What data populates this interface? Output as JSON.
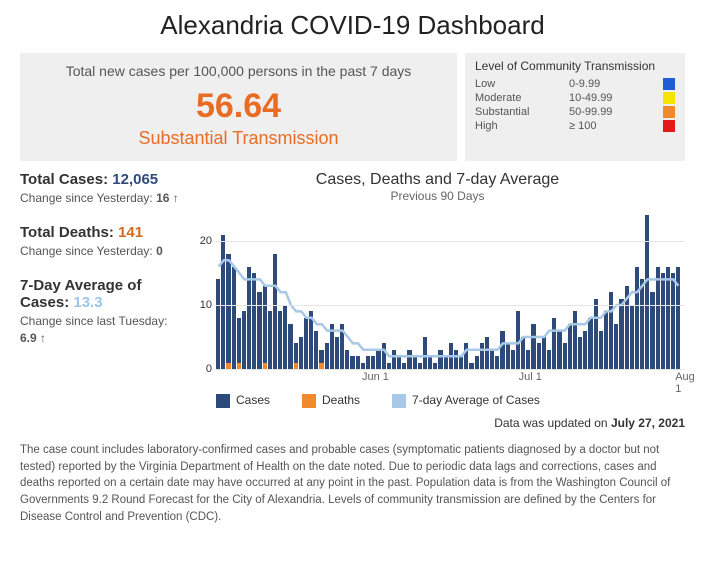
{
  "title": "Alexandria COVID-19 Dashboard",
  "kpi": {
    "label": "Total new cases per 100,000 persons in the past 7 days",
    "value": "56.64",
    "status": "Substantial Transmission",
    "value_color": "#e86c24",
    "status_color": "#e86c24"
  },
  "transmission_legend": {
    "title": "Level of Community Transmission",
    "levels": [
      {
        "name": "Low",
        "range": "0-9.99",
        "color": "#1f5cd6"
      },
      {
        "name": "Moderate",
        "range": "10-49.99",
        "color": "#f5e400"
      },
      {
        "name": "Substantial",
        "range": "50-99.99",
        "color": "#f08a2c"
      },
      {
        "name": "High",
        "range": "≥ 100",
        "color": "#e21a1a"
      }
    ]
  },
  "stats": {
    "cases": {
      "label": "Total Cases:",
      "value": "12,065",
      "value_color": "#2d4a7a",
      "change_label": "Change since Yesterday:",
      "change_value": "16 ↑"
    },
    "deaths": {
      "label": "Total Deaths:",
      "value": "141",
      "value_color": "#d46a1e",
      "change_label": "Change since Yesterday:",
      "change_value": "0"
    },
    "avg": {
      "label": "7-Day Average of Cases:",
      "value": "13.3",
      "value_color": "#9ec4e8",
      "change_label": "Change since last Tuesday:",
      "change_value": "6.9  ↑"
    }
  },
  "chart": {
    "title": "Cases, Deaths and 7-day Average",
    "subtitle": "Previous 90 Days",
    "background_color": "#ffffff",
    "grid_color": "#e5e5e5",
    "y_max": 25,
    "y_ticks": [
      0,
      10,
      20
    ],
    "x_labels": [
      {
        "text": "Jun 1",
        "pos_pct": 34
      },
      {
        "text": "Jul 1",
        "pos_pct": 67
      },
      {
        "text": "Aug 1",
        "pos_pct": 100
      }
    ],
    "cases_color": "#2d4a7a",
    "deaths_color": "#f08a2c",
    "avg_color": "#a8c8e8",
    "bars": [
      {
        "c": 14,
        "d": 0
      },
      {
        "c": 21,
        "d": 0
      },
      {
        "c": 18,
        "d": 1
      },
      {
        "c": 16,
        "d": 0
      },
      {
        "c": 8,
        "d": 1
      },
      {
        "c": 9,
        "d": 0
      },
      {
        "c": 16,
        "d": 0
      },
      {
        "c": 15,
        "d": 0
      },
      {
        "c": 12,
        "d": 0
      },
      {
        "c": 13,
        "d": 1
      },
      {
        "c": 9,
        "d": 0
      },
      {
        "c": 18,
        "d": 0
      },
      {
        "c": 9,
        "d": 0
      },
      {
        "c": 10,
        "d": 0
      },
      {
        "c": 7,
        "d": 0
      },
      {
        "c": 4,
        "d": 1
      },
      {
        "c": 5,
        "d": 0
      },
      {
        "c": 8,
        "d": 0
      },
      {
        "c": 9,
        "d": 0
      },
      {
        "c": 6,
        "d": 0
      },
      {
        "c": 3,
        "d": 1
      },
      {
        "c": 4,
        "d": 0
      },
      {
        "c": 7,
        "d": 0
      },
      {
        "c": 5,
        "d": 0
      },
      {
        "c": 7,
        "d": 0
      },
      {
        "c": 3,
        "d": 0
      },
      {
        "c": 2,
        "d": 0
      },
      {
        "c": 2,
        "d": 0
      },
      {
        "c": 1,
        "d": 0
      },
      {
        "c": 2,
        "d": 0
      },
      {
        "c": 2,
        "d": 0
      },
      {
        "c": 3,
        "d": 0
      },
      {
        "c": 4,
        "d": 0
      },
      {
        "c": 1,
        "d": 0
      },
      {
        "c": 3,
        "d": 0
      },
      {
        "c": 2,
        "d": 0
      },
      {
        "c": 1,
        "d": 0
      },
      {
        "c": 3,
        "d": 0
      },
      {
        "c": 2,
        "d": 0
      },
      {
        "c": 1,
        "d": 0
      },
      {
        "c": 5,
        "d": 0
      },
      {
        "c": 2,
        "d": 0
      },
      {
        "c": 1,
        "d": 0
      },
      {
        "c": 3,
        "d": 0
      },
      {
        "c": 2,
        "d": 0
      },
      {
        "c": 4,
        "d": 0
      },
      {
        "c": 3,
        "d": 0
      },
      {
        "c": 2,
        "d": 0
      },
      {
        "c": 4,
        "d": 0
      },
      {
        "c": 1,
        "d": 0
      },
      {
        "c": 2,
        "d": 0
      },
      {
        "c": 4,
        "d": 0
      },
      {
        "c": 5,
        "d": 0
      },
      {
        "c": 3,
        "d": 0
      },
      {
        "c": 2,
        "d": 0
      },
      {
        "c": 6,
        "d": 0
      },
      {
        "c": 4,
        "d": 0
      },
      {
        "c": 3,
        "d": 0
      },
      {
        "c": 9,
        "d": 0
      },
      {
        "c": 5,
        "d": 0
      },
      {
        "c": 3,
        "d": 0
      },
      {
        "c": 7,
        "d": 0
      },
      {
        "c": 4,
        "d": 0
      },
      {
        "c": 5,
        "d": 0
      },
      {
        "c": 3,
        "d": 0
      },
      {
        "c": 8,
        "d": 0
      },
      {
        "c": 6,
        "d": 0
      },
      {
        "c": 4,
        "d": 0
      },
      {
        "c": 7,
        "d": 0
      },
      {
        "c": 9,
        "d": 0
      },
      {
        "c": 5,
        "d": 0
      },
      {
        "c": 6,
        "d": 0
      },
      {
        "c": 8,
        "d": 0
      },
      {
        "c": 11,
        "d": 0
      },
      {
        "c": 6,
        "d": 0
      },
      {
        "c": 9,
        "d": 0
      },
      {
        "c": 12,
        "d": 0
      },
      {
        "c": 7,
        "d": 0
      },
      {
        "c": 11,
        "d": 0
      },
      {
        "c": 13,
        "d": 0
      },
      {
        "c": 10,
        "d": 0
      },
      {
        "c": 16,
        "d": 0
      },
      {
        "c": 14,
        "d": 0
      },
      {
        "c": 24,
        "d": 0
      },
      {
        "c": 12,
        "d": 0
      },
      {
        "c": 16,
        "d": 0
      },
      {
        "c": 15,
        "d": 0
      },
      {
        "c": 16,
        "d": 0
      },
      {
        "c": 15,
        "d": 0
      },
      {
        "c": 16,
        "d": 0
      }
    ],
    "avg_series": [
      16,
      17,
      17,
      16,
      15,
      14,
      14,
      14,
      14,
      13,
      13,
      13,
      12,
      12,
      10,
      9,
      9,
      8,
      8,
      7,
      7,
      6,
      6,
      6,
      6,
      5,
      4,
      4,
      3,
      3,
      3,
      3,
      3,
      2,
      2,
      2,
      2,
      2,
      2,
      2,
      2,
      2,
      2,
      2,
      2,
      2,
      2,
      2,
      3,
      3,
      3,
      3,
      3,
      3,
      3,
      4,
      4,
      4,
      4,
      5,
      5,
      5,
      5,
      5,
      6,
      6,
      6,
      6,
      7,
      7,
      7,
      7,
      8,
      8,
      8,
      9,
      9,
      10,
      10,
      11,
      12,
      12,
      13,
      14,
      14,
      14,
      14,
      14,
      14,
      13
    ],
    "legend": [
      {
        "label": "Cases",
        "color": "#2d4a7a"
      },
      {
        "label": "Deaths",
        "color": "#f08a2c"
      },
      {
        "label": "7-day Average of Cases",
        "color": "#a8c8e8"
      }
    ]
  },
  "updated": {
    "prefix": "Data was updated on ",
    "date": "July 27, 2021"
  },
  "footnote": "The case count includes laboratory-confirmed cases and probable cases (symptomatic patients diagnosed by a doctor but not tested) reported by the Virginia Department of Health on the date noted. Due to periodic data lags and corrections, cases and deaths reported on a certain date may have occurred at any point in the past. Population data is from the Washington Council of Governments 9.2 Round Forecast for the City of Alexandria. Levels of community transmission are defined by the Centers for Disease Control and Prevention (CDC)."
}
